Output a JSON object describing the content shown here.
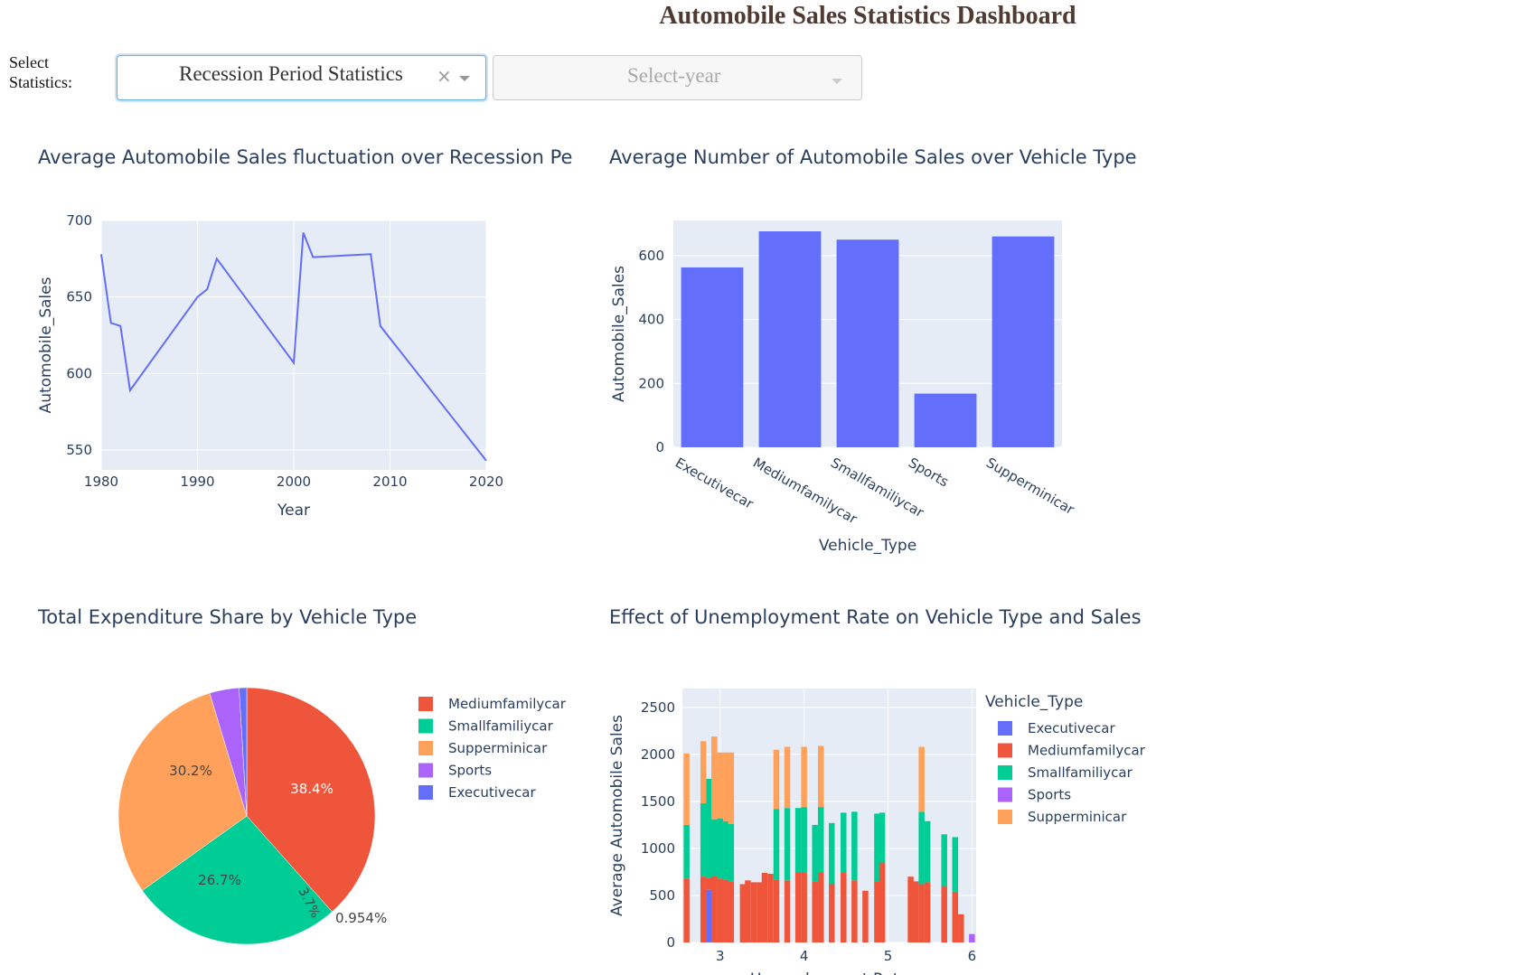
{
  "header": {
    "title": "Automobile Sales Statistics Dashboard"
  },
  "controls": {
    "select_label": "Select Statistics:",
    "statistics_dropdown": {
      "value": "Recession Period Statistics",
      "clear_icon": "×"
    },
    "year_dropdown": {
      "placeholder": "Select-year"
    }
  },
  "colors": {
    "blue": "#636EFA",
    "red": "#EF553B",
    "green": "#00CC96",
    "purple": "#AB63FA",
    "orange": "#FFA15A",
    "plot_bg": "#E5ECF6",
    "font": "#2A3F5F"
  },
  "chart_data": [
    {
      "type": "line",
      "title": "Average Automobile Sales fluctuation over Recession Pe",
      "xlabel": "Year",
      "ylabel": "Automobile_Sales",
      "xlim": [
        1980,
        2020
      ],
      "ylim": [
        537,
        700
      ],
      "xticks": [
        1980,
        1990,
        2000,
        2010,
        2020
      ],
      "yticks": [
        550,
        600,
        650,
        700
      ],
      "series": [
        {
          "name": "Automobile_Sales",
          "x": [
            1980,
            1981,
            1982,
            1983,
            1990,
            1991,
            1992,
            2000,
            2001,
            2002,
            2008,
            2009,
            2020
          ],
          "y": [
            678,
            633,
            631,
            589,
            650,
            655,
            675,
            607,
            692,
            676,
            678,
            631,
            543
          ]
        }
      ]
    },
    {
      "type": "bar",
      "title": "Average Number of Automobile Sales over Vehicle Type",
      "xlabel": "Vehicle_Type",
      "ylabel": "Automobile_Sales",
      "ylim": [
        0,
        710
      ],
      "yticks": [
        0,
        200,
        400,
        600
      ],
      "categories": [
        "Executivecar",
        "Mediumfamilycar",
        "Smallfamiliycar",
        "Sports",
        "Supperminicar"
      ],
      "values": [
        563,
        676,
        650,
        168,
        660
      ]
    },
    {
      "type": "pie",
      "title": "Total Expenditure Share by Vehicle Type",
      "labels": [
        "Mediumfamilycar",
        "Smallfamiliycar",
        "Supperminicar",
        "Sports",
        "Executivecar"
      ],
      "values": [
        38.4,
        26.7,
        30.2,
        3.7,
        0.954
      ],
      "text_labels": [
        "38.4%",
        "26.7%",
        "30.2%",
        "3.7%",
        "0.954%"
      ],
      "legend": [
        "Mediumfamilycar",
        "Smallfamiliycar",
        "Supperminicar",
        "Sports",
        "Executivecar"
      ]
    },
    {
      "type": "bar",
      "stacked": true,
      "title": "Effect of Unemployment Rate on Vehicle Type and Sales",
      "xlabel": "Unemployment Rate",
      "ylabel": "Average Automobile Sales",
      "legend_title": "Vehicle_Type",
      "xlim": [
        2.55,
        6.05
      ],
      "ylim": [
        0,
        2700
      ],
      "xticks": [
        3,
        4,
        5,
        6
      ],
      "yticks": [
        0,
        500,
        1000,
        1500,
        2000,
        2500
      ],
      "series_names": [
        "Executivecar",
        "Mediumfamilycar",
        "Smallfamiliycar",
        "Sports",
        "Supperminicar"
      ],
      "x": [
        2.6,
        2.73,
        2.8,
        2.87,
        2.93,
        3.0,
        3.07,
        3.13,
        3.2,
        3.27,
        3.33,
        3.4,
        3.47,
        3.53,
        3.6,
        3.67,
        3.73,
        3.8,
        3.87,
        3.93,
        4.0,
        4.07,
        4.13,
        4.2,
        4.27,
        4.33,
        4.4,
        4.47,
        4.53,
        4.6,
        4.67,
        4.73,
        4.8,
        4.87,
        4.93,
        5.0,
        5.07,
        5.13,
        5.2,
        5.27,
        5.33,
        5.4,
        5.47,
        5.53,
        5.6,
        5.67,
        5.73,
        5.8,
        5.87,
        5.93,
        6.0
      ],
      "series": [
        {
          "name": "Executivecar",
          "values": [
            0,
            0,
            0,
            560,
            0,
            0,
            0,
            0,
            0,
            0,
            0,
            0,
            0,
            0,
            0,
            0,
            0,
            0,
            0,
            0,
            0,
            0,
            0,
            0,
            0,
            0,
            0,
            0,
            0,
            0,
            0,
            0,
            0,
            0,
            0,
            0,
            0,
            0,
            0,
            0,
            0,
            0,
            0,
            0,
            0,
            0,
            0,
            0,
            0,
            0,
            0
          ]
        },
        {
          "name": "Mediumfamilycar",
          "values": [
            680,
            0,
            700,
            130,
            710,
            680,
            670,
            650,
            0,
            620,
            660,
            640,
            640,
            740,
            730,
            670,
            0,
            660,
            0,
            750,
            740,
            0,
            650,
            740,
            0,
            620,
            0,
            740,
            0,
            660,
            0,
            550,
            0,
            650,
            850,
            0,
            0,
            0,
            0,
            700,
            650,
            620,
            640,
            0,
            0,
            600,
            0,
            540,
            300,
            0,
            0
          ]
        },
        {
          "name": "Smallfamiliycar",
          "values": [
            570,
            0,
            780,
            1050,
            600,
            640,
            620,
            610,
            0,
            0,
            0,
            0,
            0,
            0,
            0,
            750,
            0,
            770,
            0,
            680,
            700,
            0,
            600,
            700,
            0,
            650,
            0,
            640,
            0,
            730,
            0,
            0,
            0,
            720,
            530,
            0,
            0,
            0,
            0,
            0,
            0,
            770,
            650,
            0,
            0,
            550,
            0,
            580,
            0,
            0,
            0
          ]
        },
        {
          "name": "Sports",
          "values": [
            0,
            0,
            0,
            0,
            0,
            0,
            0,
            0,
            0,
            0,
            0,
            0,
            0,
            0,
            0,
            0,
            0,
            0,
            0,
            0,
            0,
            0,
            0,
            0,
            0,
            0,
            0,
            0,
            0,
            0,
            0,
            0,
            0,
            0,
            0,
            0,
            0,
            0,
            0,
            0,
            0,
            0,
            0,
            0,
            0,
            0,
            0,
            0,
            0,
            0,
            90
          ]
        },
        {
          "name": "Supperminicar",
          "values": [
            760,
            0,
            660,
            0,
            880,
            700,
            730,
            760,
            0,
            0,
            0,
            0,
            0,
            0,
            0,
            630,
            0,
            650,
            0,
            0,
            640,
            0,
            0,
            650,
            0,
            0,
            0,
            0,
            0,
            0,
            0,
            0,
            0,
            0,
            0,
            0,
            0,
            0,
            0,
            0,
            0,
            690,
            0,
            0,
            0,
            0,
            0,
            0,
            0,
            0,
            0
          ]
        }
      ]
    }
  ]
}
